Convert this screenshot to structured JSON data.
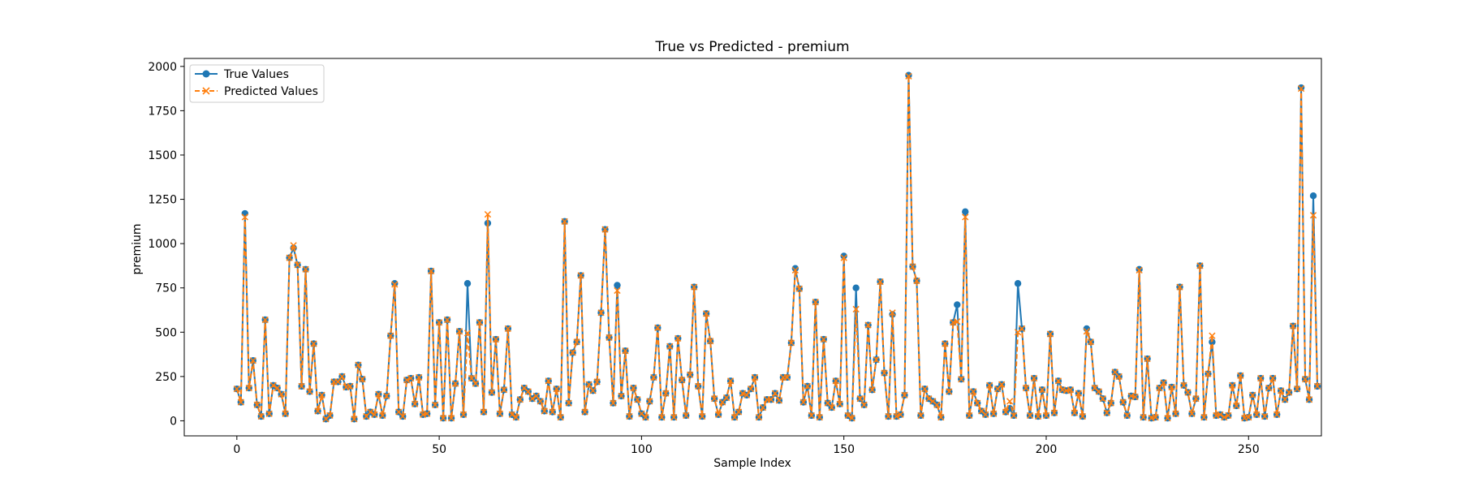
{
  "chart_data": {
    "type": "line",
    "title": "True vs Predicted - premium",
    "xlabel": "Sample Index",
    "ylabel": "premium",
    "xlim": [
      -13,
      268
    ],
    "ylim": [
      -85,
      2045
    ],
    "xticks": [
      0,
      50,
      100,
      150,
      200,
      250
    ],
    "yticks": [
      0,
      250,
      500,
      750,
      1000,
      1250,
      1500,
      1750,
      2000
    ],
    "grid": false,
    "legend_position": "top-left",
    "series": [
      {
        "name": "True Values",
        "color": "#1f77b4",
        "style": "solid",
        "marker": "circle",
        "values": [
          180,
          105,
          1170,
          185,
          340,
          90,
          25,
          570,
          40,
          200,
          185,
          150,
          40,
          920,
          975,
          880,
          195,
          855,
          165,
          435,
          55,
          145,
          10,
          30,
          220,
          220,
          250,
          190,
          195,
          10,
          315,
          235,
          25,
          50,
          35,
          150,
          30,
          140,
          480,
          775,
          50,
          25,
          230,
          240,
          95,
          245,
          35,
          40,
          845,
          90,
          555,
          15,
          570,
          15,
          210,
          505,
          35,
          775,
          240,
          210,
          555,
          50,
          1115,
          160,
          460,
          40,
          175,
          520,
          35,
          20,
          120,
          185,
          165,
          125,
          140,
          110,
          55,
          225,
          50,
          180,
          20,
          1125,
          100,
          385,
          445,
          820,
          50,
          205,
          170,
          220,
          610,
          1080,
          470,
          100,
          765,
          140,
          395,
          25,
          185,
          120,
          40,
          20,
          110,
          245,
          525,
          20,
          155,
          420,
          20,
          465,
          230,
          30,
          260,
          755,
          195,
          25,
          605,
          450,
          125,
          35,
          105,
          130,
          225,
          20,
          50,
          155,
          145,
          180,
          245,
          20,
          75,
          120,
          120,
          155,
          115,
          245,
          245,
          440,
          860,
          745,
          105,
          195,
          30,
          670,
          20,
          460,
          100,
          75,
          225,
          95,
          930,
          30,
          15,
          750,
          125,
          90,
          540,
          175,
          345,
          785,
          270,
          25,
          600,
          25,
          35,
          145,
          1950,
          870,
          790,
          30,
          180,
          125,
          110,
          90,
          20,
          435,
          165,
          555,
          655,
          235,
          1180,
          30,
          165,
          100,
          55,
          35,
          200,
          40,
          180,
          205,
          50,
          70,
          30,
          775,
          520,
          185,
          30,
          240,
          25,
          175,
          30,
          490,
          45,
          225,
          175,
          170,
          175,
          45,
          155,
          25,
          520,
          445,
          185,
          165,
          125,
          45,
          100,
          275,
          250,
          105,
          30,
          140,
          135,
          855,
          20,
          350,
          15,
          20,
          185,
          215,
          15,
          190,
          40,
          755,
          200,
          160,
          40,
          125,
          875,
          20,
          265,
          445,
          30,
          35,
          20,
          30,
          200,
          85,
          255,
          15,
          20,
          145,
          35,
          240,
          25,
          185,
          240,
          35,
          170,
          120,
          160,
          535,
          180,
          1880,
          235,
          120,
          1270,
          195
        ]
      },
      {
        "name": "Predicted Values",
        "color": "#ff7f0e",
        "style": "dashed",
        "marker": "x",
        "values": [
          180,
          105,
          1150,
          185,
          340,
          90,
          25,
          570,
          40,
          200,
          185,
          150,
          40,
          920,
          990,
          880,
          195,
          855,
          165,
          435,
          55,
          145,
          10,
          30,
          220,
          220,
          250,
          190,
          195,
          10,
          315,
          235,
          25,
          50,
          35,
          150,
          30,
          140,
          480,
          770,
          50,
          25,
          230,
          240,
          95,
          245,
          35,
          40,
          845,
          90,
          555,
          15,
          570,
          15,
          210,
          505,
          35,
          495,
          240,
          210,
          555,
          50,
          1165,
          160,
          460,
          40,
          175,
          520,
          35,
          20,
          120,
          185,
          165,
          125,
          140,
          110,
          55,
          225,
          50,
          180,
          20,
          1125,
          100,
          385,
          445,
          820,
          50,
          205,
          170,
          220,
          610,
          1080,
          470,
          100,
          735,
          140,
          395,
          25,
          185,
          120,
          40,
          20,
          110,
          245,
          525,
          20,
          155,
          420,
          20,
          465,
          230,
          30,
          260,
          755,
          195,
          25,
          605,
          450,
          125,
          35,
          105,
          130,
          225,
          20,
          50,
          155,
          145,
          180,
          245,
          20,
          75,
          120,
          120,
          155,
          115,
          245,
          245,
          440,
          850,
          745,
          105,
          195,
          30,
          670,
          20,
          460,
          100,
          75,
          225,
          95,
          920,
          30,
          15,
          630,
          125,
          90,
          540,
          175,
          345,
          785,
          270,
          25,
          610,
          25,
          35,
          145,
          1945,
          870,
          790,
          30,
          180,
          125,
          110,
          90,
          20,
          435,
          165,
          555,
          560,
          235,
          1150,
          30,
          165,
          100,
          55,
          35,
          200,
          40,
          180,
          205,
          50,
          110,
          30,
          500,
          520,
          185,
          30,
          240,
          25,
          175,
          30,
          490,
          45,
          225,
          175,
          170,
          175,
          45,
          155,
          25,
          505,
          445,
          185,
          165,
          125,
          45,
          100,
          275,
          250,
          105,
          30,
          140,
          135,
          850,
          20,
          350,
          15,
          20,
          185,
          215,
          15,
          190,
          40,
          755,
          200,
          160,
          40,
          125,
          875,
          20,
          265,
          480,
          30,
          35,
          20,
          30,
          200,
          85,
          255,
          15,
          20,
          145,
          35,
          240,
          25,
          185,
          240,
          35,
          170,
          120,
          160,
          535,
          180,
          1875,
          235,
          120,
          1160,
          195
        ]
      }
    ]
  }
}
